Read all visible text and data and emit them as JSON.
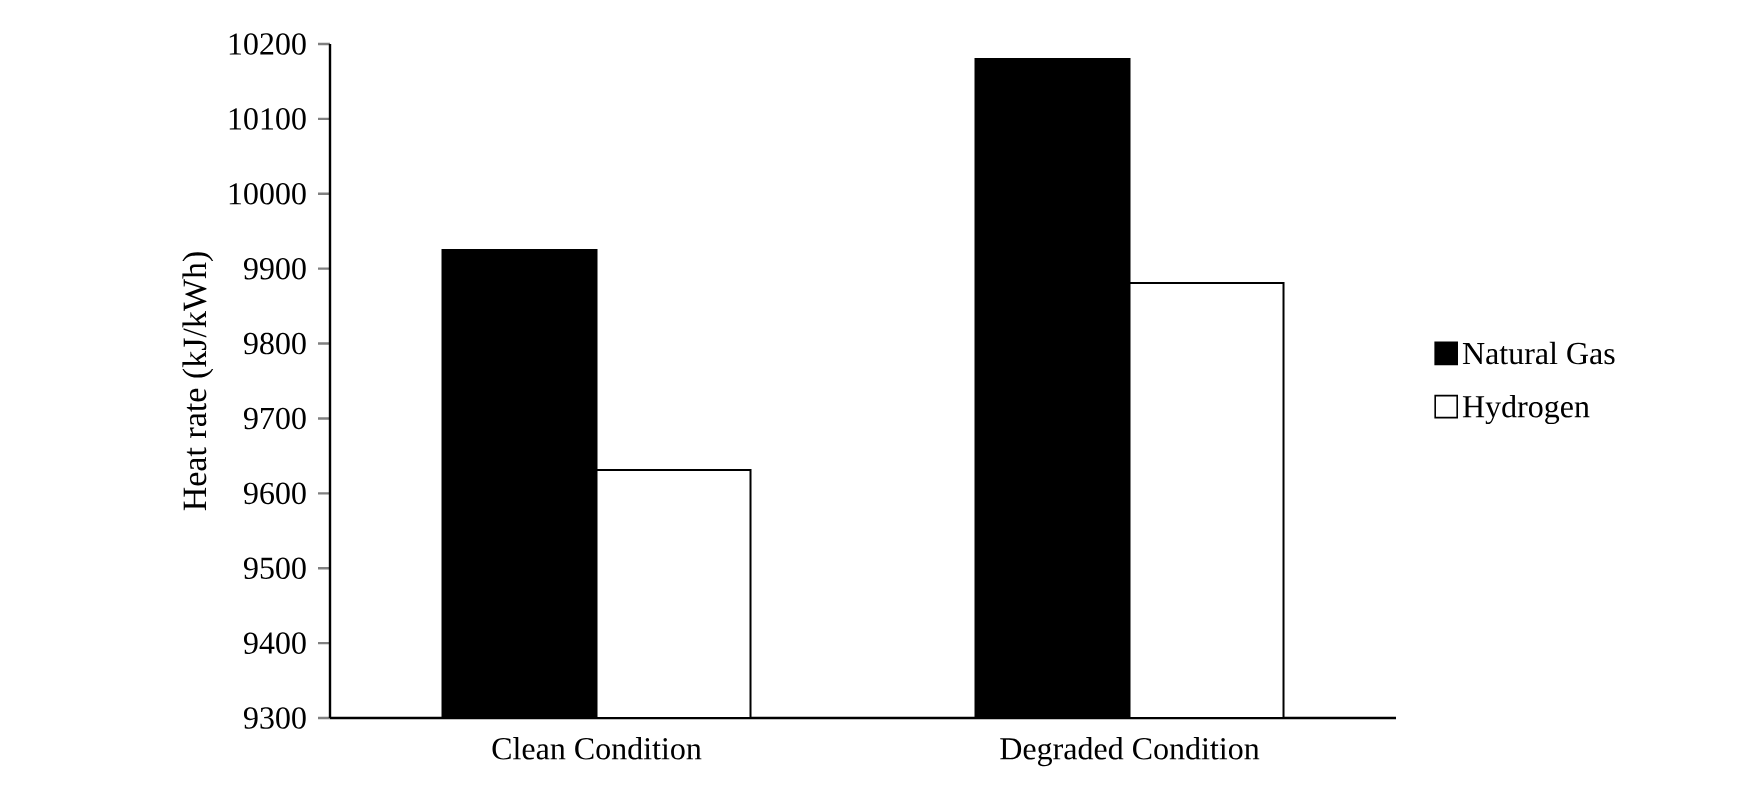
{
  "chart_data": {
    "type": "bar",
    "ylabel": "Heat rate (kJ/kWh)",
    "categories": [
      "Clean Condition",
      "Degraded Condition"
    ],
    "series": [
      {
        "name": "Natural Gas",
        "color": "#000000",
        "values": [
          9925,
          10180
        ]
      },
      {
        "name": "Hydrogen",
        "color": "#ffffff",
        "values": [
          9631,
          9881
        ]
      }
    ],
    "ylim": [
      9300,
      10200
    ],
    "yticks": [
      9300,
      9400,
      9500,
      9600,
      9700,
      9800,
      9900,
      10000,
      10100,
      10200
    ],
    "grid": false,
    "legend": "right"
  }
}
